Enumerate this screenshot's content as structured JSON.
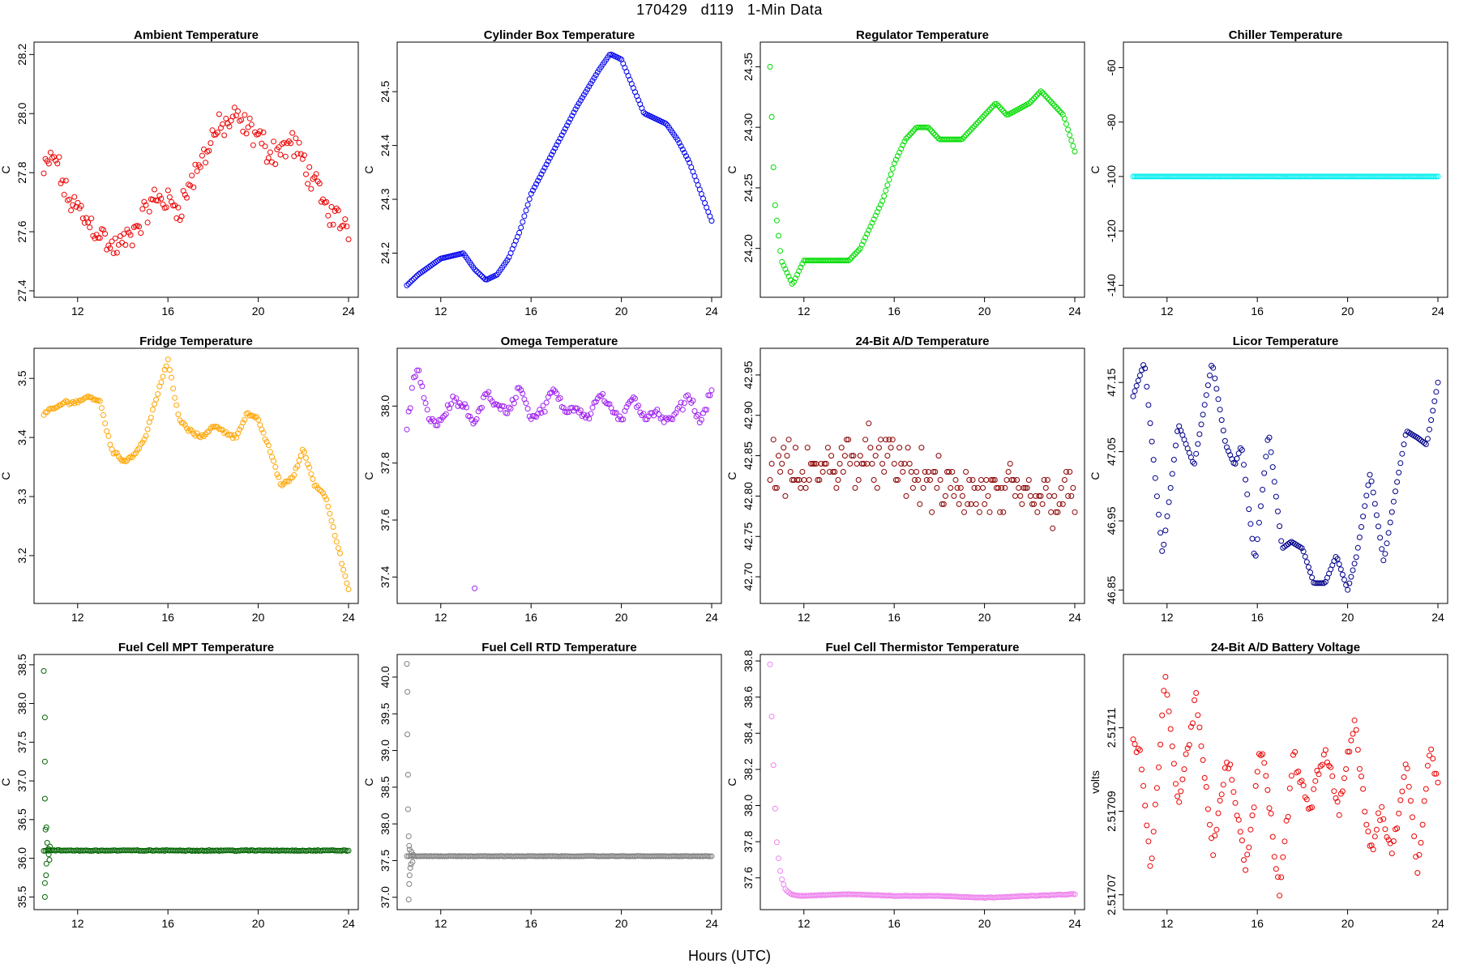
{
  "title": "170429   d119   1-Min Data",
  "xlabel": "Hours (UTC)",
  "chart_data": [
    {
      "type": "scatter",
      "title": "Ambient Temperature",
      "ylabel": "C",
      "color": "#ee0000",
      "fill": false,
      "xlim": [
        10.5,
        24
      ],
      "ylim": [
        27.4,
        28.22
      ],
      "xticks": [
        12,
        16,
        20,
        24
      ],
      "yticks": [
        27.4,
        27.6,
        27.8,
        28.0,
        28.2
      ],
      "yticklabels": [
        "27.4",
        "27.6",
        "27.8",
        "28.0",
        "28.2"
      ],
      "x": [
        10.5,
        11,
        11.5,
        12,
        12.5,
        13,
        13.5,
        14,
        14.5,
        15,
        15.5,
        16,
        16.5,
        17,
        17.5,
        18,
        18.5,
        19,
        19.5,
        20,
        20.5,
        21,
        21.5,
        22,
        22.5,
        23,
        23.5,
        24
      ],
      "y": [
        27.8,
        27.86,
        27.72,
        27.68,
        27.63,
        27.6,
        27.54,
        27.56,
        27.6,
        27.66,
        27.72,
        27.7,
        27.68,
        27.76,
        27.84,
        27.93,
        27.96,
        27.98,
        27.95,
        27.92,
        27.87,
        27.88,
        27.9,
        27.84,
        27.76,
        27.68,
        27.64,
        27.62
      ],
      "noise": 0.06
    },
    {
      "type": "scatter",
      "title": "Cylinder Box Temperature",
      "ylabel": "C",
      "color": "#0000ee",
      "fill": false,
      "xlim": [
        10.5,
        24
      ],
      "ylim": [
        24.13,
        24.58
      ],
      "xticks": [
        12,
        16,
        20,
        24
      ],
      "yticks": [
        24.2,
        24.3,
        24.4,
        24.5
      ],
      "yticklabels": [
        "24.2",
        "24.3",
        "24.4",
        "24.5"
      ],
      "x": [
        10.5,
        11,
        12,
        13,
        13.5,
        14,
        14.5,
        15,
        15.5,
        16,
        17,
        18,
        19,
        19.5,
        20,
        21,
        21.5,
        22,
        22.5,
        23,
        24
      ],
      "y": [
        24.14,
        24.16,
        24.19,
        24.2,
        24.17,
        24.15,
        24.16,
        24.19,
        24.24,
        24.31,
        24.39,
        24.47,
        24.54,
        24.57,
        24.56,
        24.46,
        24.45,
        24.44,
        24.41,
        24.37,
        24.26
      ],
      "noise": 0.0
    },
    {
      "type": "scatter",
      "title": "Regulator Temperature",
      "ylabel": "C",
      "color": "#00dd00",
      "fill": false,
      "xlim": [
        10.5,
        24
      ],
      "ylim": [
        24.165,
        24.365
      ],
      "xticks": [
        12,
        16,
        20,
        24
      ],
      "yticks": [
        24.2,
        24.25,
        24.3,
        24.35
      ],
      "yticklabels": [
        "24.20",
        "24.25",
        "24.30",
        "24.35"
      ],
      "x": [
        10.5,
        10.7,
        11,
        11.5,
        12,
        13,
        14,
        14.5,
        15,
        15.5,
        16,
        16.5,
        17,
        17.5,
        18,
        19,
        19.5,
        20,
        20.5,
        21,
        22,
        22.5,
        23,
        23.5,
        24
      ],
      "y": [
        24.35,
        24.24,
        24.19,
        24.17,
        24.19,
        24.19,
        24.19,
        24.2,
        24.22,
        24.24,
        24.27,
        24.29,
        24.3,
        24.3,
        24.29,
        24.29,
        24.3,
        24.31,
        24.32,
        24.31,
        24.32,
        24.33,
        24.32,
        24.31,
        24.28
      ],
      "noise": 0.0
    },
    {
      "type": "scatter",
      "title": "Chiller Temperature",
      "ylabel": "C",
      "color": "#00eeee",
      "fill": false,
      "xlim": [
        10.5,
        24
      ],
      "ylim": [
        -142,
        -53
      ],
      "xticks": [
        12,
        16,
        20,
        24
      ],
      "yticks": [
        -140,
        -120,
        -100,
        -80,
        -60
      ],
      "yticklabels": [
        "-140",
        "-120",
        "-100",
        "-80",
        "-60"
      ],
      "x": [
        10.5,
        24
      ],
      "y": [
        -100,
        -100
      ],
      "noise": 0.0
    },
    {
      "type": "scatter",
      "title": "Fridge Temperature",
      "ylabel": "C",
      "color": "#ffa500",
      "fill": false,
      "xlim": [
        10.5,
        24
      ],
      "ylim": [
        3.13,
        3.54
      ],
      "xticks": [
        12,
        16,
        20,
        24
      ],
      "yticks": [
        3.2,
        3.3,
        3.4,
        3.5
      ],
      "yticklabels": [
        "3.2",
        "3.3",
        "3.4",
        "3.5"
      ],
      "x": [
        10.5,
        11,
        11.5,
        12,
        12.5,
        13,
        13.5,
        14,
        14.5,
        15,
        15.5,
        16,
        16.5,
        17,
        17.5,
        18,
        18.5,
        19,
        19.5,
        20,
        20.5,
        21,
        21.5,
        22,
        22.5,
        23,
        23.5,
        24
      ],
      "y": [
        3.44,
        3.45,
        3.46,
        3.46,
        3.47,
        3.46,
        3.38,
        3.36,
        3.37,
        3.4,
        3.47,
        3.53,
        3.43,
        3.41,
        3.4,
        3.42,
        3.41,
        3.4,
        3.44,
        3.43,
        3.38,
        3.32,
        3.33,
        3.38,
        3.32,
        3.3,
        3.22,
        3.14
      ],
      "noise": 0.004
    },
    {
      "type": "scatter",
      "title": "Omega Temperature",
      "ylabel": "C",
      "color": "#a020f0",
      "fill": false,
      "xlim": [
        10.5,
        24
      ],
      "ylim": [
        37.33,
        38.18
      ],
      "xticks": [
        12,
        16,
        20,
        24
      ],
      "yticks": [
        37.4,
        37.6,
        37.8,
        38.0
      ],
      "yticklabels": [
        "37.4",
        "37.6",
        "37.8",
        "38.0"
      ],
      "x": [
        10.5,
        10.8,
        11,
        11.5,
        12,
        12.5,
        13,
        13.5,
        14,
        14.5,
        15,
        15.5,
        16,
        16.5,
        17,
        17.5,
        18,
        18.5,
        19,
        19.5,
        20,
        20.5,
        21,
        21.5,
        22,
        22.5,
        23,
        23.5,
        24
      ],
      "y": [
        37.92,
        38.1,
        38.12,
        37.95,
        37.94,
        38.02,
        38.0,
        37.94,
        38.05,
        38.0,
        37.98,
        38.07,
        37.96,
        37.98,
        38.06,
        37.98,
        38.0,
        37.96,
        38.04,
        38.0,
        37.94,
        38.04,
        37.96,
        37.98,
        37.94,
        37.98,
        38.04,
        37.94,
        38.06
      ],
      "noise": 0.02,
      "outliers": [
        [
          13.5,
          37.36
        ]
      ]
    },
    {
      "type": "scatter",
      "title": "24-Bit A/D Temperature",
      "ylabel": "C",
      "color": "#8b0000",
      "fill": false,
      "xlim": [
        10.5,
        24
      ],
      "ylim": [
        42.675,
        42.975
      ],
      "xticks": [
        12,
        16,
        20,
        24
      ],
      "yticks": [
        42.7,
        42.75,
        42.8,
        42.85,
        42.9,
        42.95
      ],
      "yticklabels": [
        "42.70",
        "42.75",
        "42.80",
        "42.85",
        "42.90",
        "42.95"
      ],
      "x": [
        10.5,
        12,
        14,
        16,
        18,
        20,
        22,
        24
      ],
      "y": [
        42.84,
        42.82,
        42.85,
        42.84,
        42.81,
        42.8,
        42.8,
        42.8
      ],
      "noise": 0.045,
      "quant": 0.01
    },
    {
      "type": "scatter",
      "title": "Licor Temperature",
      "ylabel": "C",
      "color": "#00008b",
      "fill": false,
      "xlim": [
        10.5,
        24
      ],
      "ylim": [
        46.84,
        47.19
      ],
      "xticks": [
        12,
        16,
        20,
        24
      ],
      "yticks": [
        46.85,
        46.95,
        47.05,
        47.15
      ],
      "yticklabels": [
        "46.85",
        "46.95",
        "47.05",
        "47.15"
      ],
      "x": [
        10.5,
        11,
        11.8,
        12.5,
        13.2,
        14,
        14.6,
        15,
        15.3,
        15.9,
        16.5,
        17.1,
        17.5,
        18,
        18.5,
        19,
        19.5,
        20,
        20.4,
        21,
        21.6,
        22.1,
        22.6,
        23.1,
        23.5,
        24
      ],
      "y": [
        47.13,
        47.18,
        46.9,
        47.09,
        47.03,
        47.18,
        47.06,
        47.03,
        47.06,
        46.89,
        47.08,
        46.91,
        46.92,
        46.91,
        46.86,
        46.86,
        46.9,
        46.85,
        46.9,
        47.02,
        46.89,
        46.99,
        47.08,
        47.07,
        47.06,
        47.15
      ],
      "noise": 0.0
    },
    {
      "type": "scatter",
      "title": "Fuel Cell MPT Temperature",
      "ylabel": "C",
      "color": "#006400",
      "fill": false,
      "xlim": [
        10.5,
        24
      ],
      "ylim": [
        35.42,
        38.55
      ],
      "xticks": [
        12,
        16,
        20,
        24
      ],
      "yticks": [
        35.5,
        36.0,
        36.5,
        37.0,
        37.5,
        38.0,
        38.5
      ],
      "yticklabels": [
        "35.5",
        "36.0",
        "36.5",
        "37.0",
        "37.5",
        "38.0",
        "38.5"
      ],
      "x": [
        10.5,
        10.8,
        11,
        24
      ],
      "y": [
        36.1,
        36.1,
        36.1,
        36.1
      ],
      "noise": 0.008,
      "outliers": [
        [
          10.5,
          38.42
        ],
        [
          10.55,
          37.82
        ],
        [
          10.55,
          37.25
        ],
        [
          10.55,
          36.77
        ],
        [
          10.58,
          36.37
        ],
        [
          10.62,
          36.4
        ],
        [
          10.65,
          36.2
        ],
        [
          10.55,
          35.5
        ],
        [
          10.55,
          35.68
        ],
        [
          10.6,
          35.78
        ],
        [
          10.62,
          35.93
        ],
        [
          10.7,
          36.12
        ],
        [
          10.72,
          36.05
        ],
        [
          10.75,
          35.98
        ],
        [
          10.78,
          36.15
        ]
      ]
    },
    {
      "type": "scatter",
      "title": "Fuel Cell RTD Temperature",
      "ylabel": "C",
      "color": "#808080",
      "fill": false,
      "xlim": [
        10.5,
        24
      ],
      "ylim": [
        36.92,
        40.22
      ],
      "xticks": [
        12,
        16,
        20,
        24
      ],
      "yticks": [
        37.0,
        37.5,
        38.0,
        38.5,
        39.0,
        39.5,
        40.0
      ],
      "yticklabels": [
        "37.0",
        "37.5",
        "38.0",
        "38.5",
        "39.0",
        "39.5",
        "40.0"
      ],
      "x": [
        10.5,
        10.9,
        11,
        24
      ],
      "y": [
        37.56,
        37.56,
        37.56,
        37.56
      ],
      "noise": 0.004,
      "outliers": [
        [
          10.5,
          40.18
        ],
        [
          10.52,
          39.8
        ],
        [
          10.52,
          39.22
        ],
        [
          10.55,
          38.67
        ],
        [
          10.55,
          38.2
        ],
        [
          10.58,
          37.83
        ],
        [
          10.6,
          37.7
        ],
        [
          10.62,
          37.65
        ],
        [
          10.58,
          36.97
        ],
        [
          10.6,
          37.18
        ],
        [
          10.62,
          37.3
        ],
        [
          10.65,
          37.4
        ],
        [
          10.68,
          37.45
        ],
        [
          10.7,
          37.62
        ],
        [
          10.75,
          37.48
        ],
        [
          10.78,
          37.58
        ]
      ]
    },
    {
      "type": "scatter",
      "title": "Fuel Cell Thermistor Temperature",
      "ylabel": "C",
      "color": "#ee82ee",
      "fill": false,
      "xlim": [
        10.5,
        24
      ],
      "ylim": [
        37.46,
        38.8
      ],
      "xticks": [
        12,
        16,
        20,
        24
      ],
      "yticks": [
        37.6,
        37.8,
        38.0,
        38.2,
        38.4,
        38.6,
        38.8
      ],
      "yticklabels": [
        "37.6",
        "37.8",
        "38.0",
        "38.2",
        "38.4",
        "38.6",
        "38.8"
      ],
      "x": [
        10.5,
        10.6,
        10.7,
        10.8,
        10.9,
        11,
        11.2,
        11.5,
        12,
        14,
        16,
        18,
        20,
        22,
        24
      ],
      "y": [
        38.78,
        38.4,
        38.05,
        37.8,
        37.68,
        37.6,
        37.53,
        37.505,
        37.5,
        37.51,
        37.5,
        37.5,
        37.49,
        37.5,
        37.51
      ],
      "noise": 0.002
    },
    {
      "type": "scatter",
      "title": "24-Bit A/D Battery Voltage",
      "ylabel": "volts",
      "color": "#ee0000",
      "fill": false,
      "xlim": [
        10.5,
        24
      ],
      "ylim": [
        2.517068,
        2.517126
      ],
      "xticks": [
        12,
        16,
        20,
        24
      ],
      "yticks": [
        2.51707,
        2.51709,
        2.51711
      ],
      "yticklabels": [
        "2.51707",
        "2.51709",
        "2.51711"
      ],
      "x": [
        10.5,
        10.8,
        11.3,
        11.9,
        12.5,
        13.3,
        14,
        14.7,
        15.5,
        16.2,
        17,
        17.6,
        18.3,
        19,
        19.6,
        20.3,
        21,
        21.5,
        22,
        22.6,
        23.1,
        23.6,
        24
      ],
      "y": [
        2.517106,
        2.517104,
        2.517076,
        2.517122,
        2.517092,
        2.517118,
        2.51708,
        2.517103,
        2.517077,
        2.517107,
        2.51707,
        2.517104,
        2.51709,
        2.517105,
        2.51709,
        2.517112,
        2.51708,
        2.51709,
        2.51708,
        2.517103,
        2.517075,
        2.517105,
        2.517098
      ],
      "noise": 2.5e-06
    }
  ]
}
